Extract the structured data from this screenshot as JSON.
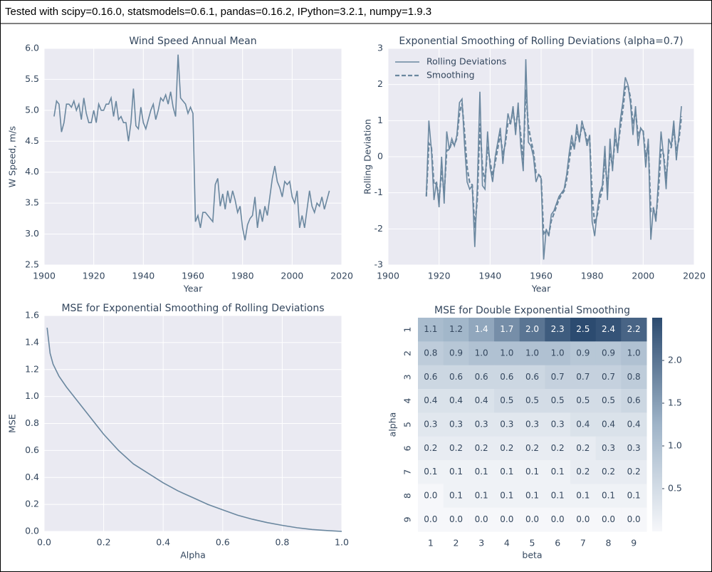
{
  "header": {
    "text": "Tested with scipy=0.16.0, statsmodels=0.6.1, pandas=0.16.2, IPython=3.2.1, numpy=1.9.3"
  },
  "chart_data": [
    {
      "type": "line",
      "title": "Wind Speed Annual Mean",
      "xlabel": "Year",
      "ylabel": "W Speed, m/s",
      "color": "#6a879f",
      "grid": true,
      "x": [
        1904,
        1905,
        1906,
        1907,
        1908,
        1909,
        1910,
        1911,
        1912,
        1913,
        1914,
        1915,
        1916,
        1917,
        1918,
        1919,
        1920,
        1921,
        1922,
        1923,
        1924,
        1925,
        1926,
        1927,
        1928,
        1929,
        1930,
        1931,
        1932,
        1933,
        1934,
        1935,
        1936,
        1937,
        1938,
        1939,
        1940,
        1941,
        1942,
        1943,
        1944,
        1945,
        1946,
        1947,
        1948,
        1949,
        1950,
        1951,
        1952,
        1953,
        1954,
        1955,
        1956,
        1957,
        1958,
        1959,
        1960,
        1961,
        1962,
        1963,
        1964,
        1965,
        1966,
        1967,
        1968,
        1969,
        1970,
        1971,
        1972,
        1973,
        1974,
        1975,
        1976,
        1977,
        1978,
        1979,
        1980,
        1981,
        1982,
        1983,
        1984,
        1985,
        1986,
        1987,
        1988,
        1989,
        1990,
        1991,
        1992,
        1993,
        1994,
        1995,
        1996,
        1997,
        1998,
        1999,
        2000,
        2001,
        2002,
        2003,
        2004,
        2005,
        2006,
        2007,
        2008,
        2009,
        2010,
        2011,
        2012,
        2013,
        2014,
        2015
      ],
      "values": [
        4.9,
        5.15,
        5.1,
        4.65,
        4.8,
        5.1,
        5.1,
        5.05,
        5.15,
        5.0,
        5.1,
        4.85,
        5.2,
        4.95,
        4.8,
        4.8,
        5.0,
        4.8,
        5.1,
        5.0,
        5.0,
        5.1,
        5.1,
        5.2,
        4.9,
        5.15,
        4.85,
        4.9,
        4.8,
        4.8,
        4.5,
        4.8,
        5.35,
        4.75,
        4.7,
        5.05,
        4.8,
        4.7,
        4.85,
        5.0,
        5.1,
        4.85,
        5.0,
        5.2,
        5.15,
        5.25,
        5.1,
        5.3,
        5.05,
        4.9,
        5.9,
        5.2,
        5.15,
        5.1,
        4.95,
        5.05,
        4.95,
        3.2,
        3.3,
        3.1,
        3.35,
        3.35,
        3.3,
        3.25,
        3.2,
        3.8,
        3.9,
        3.45,
        3.65,
        3.4,
        3.7,
        3.5,
        3.7,
        3.55,
        3.35,
        3.45,
        3.1,
        2.9,
        3.15,
        3.25,
        3.3,
        3.6,
        3.1,
        3.4,
        3.2,
        3.45,
        3.3,
        3.6,
        3.9,
        4.1,
        3.85,
        3.75,
        3.6,
        3.85,
        3.8,
        3.85,
        3.6,
        3.5,
        3.7,
        3.1,
        3.3,
        3.1,
        3.4,
        3.7,
        3.45,
        3.35,
        3.5,
        3.45,
        3.6,
        3.4,
        3.55,
        3.7
      ],
      "xlim": [
        1900,
        2020
      ],
      "xticks": [
        1900,
        1920,
        1940,
        1960,
        1980,
        2000,
        2020
      ],
      "ylim": [
        2.5,
        6.0
      ],
      "yticks": [
        2.5,
        {
          "value": 3,
          "label": "3.0"
        },
        3.5,
        {
          "value": 4,
          "label": "4.0"
        },
        4.5,
        {
          "value": 5,
          "label": "5.0"
        },
        5.5,
        {
          "value": 6,
          "label": "6.0"
        }
      ]
    },
    {
      "type": "line",
      "title": "Exponential Smoothing of Rolling Deviations (alpha=0.7)",
      "xlabel": "Year",
      "ylabel": "Rolling Deviation",
      "grid": true,
      "legend": "upper left",
      "x": [
        1915,
        1916,
        1917,
        1918,
        1919,
        1920,
        1921,
        1922,
        1923,
        1924,
        1925,
        1926,
        1927,
        1928,
        1929,
        1930,
        1931,
        1932,
        1933,
        1934,
        1935,
        1936,
        1937,
        1938,
        1939,
        1940,
        1941,
        1942,
        1943,
        1944,
        1945,
        1946,
        1947,
        1948,
        1949,
        1950,
        1951,
        1952,
        1953,
        1954,
        1955,
        1956,
        1957,
        1958,
        1959,
        1960,
        1961,
        1962,
        1963,
        1964,
        1965,
        1966,
        1967,
        1968,
        1969,
        1970,
        1971,
        1972,
        1973,
        1974,
        1975,
        1976,
        1977,
        1978,
        1979,
        1980,
        1981,
        1982,
        1983,
        1984,
        1985,
        1986,
        1987,
        1988,
        1989,
        1990,
        1991,
        1992,
        1993,
        1994,
        1995,
        1996,
        1997,
        1998,
        1999,
        2000,
        2001,
        2002,
        2003,
        2004,
        2005,
        2006,
        2007,
        2008,
        2009,
        2010,
        2011,
        2012,
        2013,
        2014,
        2015
      ],
      "series": [
        {
          "name": "Rolling Deviations",
          "color": "#6a879f",
          "linestyle": "solid",
          "values": [
            -1.1,
            1.0,
            0.2,
            -1.2,
            -0.7,
            -1.4,
            0.0,
            -1.3,
            0.7,
            0.2,
            0.5,
            0.3,
            0.6,
            1.5,
            1.6,
            0.3,
            -0.7,
            -0.9,
            -0.8,
            -2.5,
            -0.8,
            1.8,
            -0.8,
            -0.9,
            0.7,
            -0.3,
            -0.7,
            0.0,
            0.4,
            0.8,
            -0.2,
            0.5,
            1.2,
            0.9,
            1.4,
            0.6,
            1.5,
            0.3,
            -0.4,
            2.7,
            0.4,
            0.3,
            0.0,
            -0.7,
            -0.5,
            -0.6,
            -2.85,
            -2.0,
            -2.2,
            -1.6,
            -1.5,
            -1.3,
            -1.1,
            -1.0,
            -0.9,
            -0.5,
            0.1,
            0.6,
            0.2,
            0.9,
            0.4,
            1.0,
            0.7,
            0.3,
            0.6,
            -1.8,
            -2.2,
            -1.5,
            -1.0,
            -0.8,
            0.3,
            -1.2,
            0.5,
            -0.4,
            0.8,
            0.1,
            1.0,
            1.5,
            2.2,
            2.0,
            1.5,
            0.6,
            1.4,
            0.3,
            0.8,
            0.7,
            -0.3,
            0.5,
            -2.3,
            -1.4,
            -1.8,
            -0.6,
            0.7,
            0.0,
            -0.9,
            0.5,
            0.3,
            1.0,
            -0.1,
            0.6,
            1.4
          ]
        },
        {
          "name": "Smoothing",
          "color": "#6a879f",
          "linestyle": "dashed",
          "values": [
            -1.1,
            0.37,
            0.25,
            -0.77,
            -0.72,
            -1.2,
            -0.36,
            -1.02,
            0.18,
            0.19,
            0.41,
            0.33,
            0.52,
            1.21,
            1.48,
            0.65,
            -0.3,
            -0.72,
            -0.78,
            -1.98,
            -1.15,
            0.92,
            -0.28,
            -0.71,
            0.28,
            -0.13,
            -0.53,
            -0.16,
            0.23,
            0.63,
            0.05,
            0.37,
            0.95,
            0.92,
            1.26,
            0.8,
            1.29,
            0.6,
            -0.1,
            1.86,
            0.84,
            0.46,
            0.14,
            -0.45,
            -0.49,
            -0.57,
            -2.17,
            -2.05,
            -2.16,
            -1.77,
            -1.58,
            -1.38,
            -1.18,
            -1.05,
            -0.95,
            -0.64,
            -0.12,
            0.38,
            0.25,
            0.71,
            0.49,
            0.85,
            0.75,
            0.44,
            0.55,
            -1.1,
            -1.87,
            -1.61,
            -1.18,
            -0.91,
            -0.06,
            -0.86,
            0.09,
            -0.25,
            0.49,
            0.22,
            0.77,
            1.28,
            1.92,
            1.98,
            1.64,
            0.91,
            1.25,
            0.59,
            0.74,
            0.71,
            0.0,
            0.35,
            -1.51,
            -1.43,
            -1.69,
            -0.93,
            0.21,
            0.06,
            -0.61,
            0.17,
            0.26,
            0.78,
            0.16,
            0.47,
            1.12
          ]
        }
      ],
      "xlim": [
        1900,
        2020
      ],
      "xticks": [
        1900,
        1920,
        1940,
        1960,
        1980,
        2000,
        2020
      ],
      "ylim": [
        -3,
        3
      ],
      "yticks": [
        -3,
        -2,
        -1,
        0,
        1,
        2,
        3
      ]
    },
    {
      "type": "line",
      "title": "MSE for Exponential Smoothing of Rolling Deviations",
      "xlabel": "Alpha",
      "ylabel": "MSE",
      "color": "#6a879f",
      "grid": true,
      "x": [
        0.01,
        0.02,
        0.03,
        0.05,
        0.075,
        0.1,
        0.15,
        0.2,
        0.25,
        0.3,
        0.35,
        0.4,
        0.45,
        0.5,
        0.55,
        0.6,
        0.65,
        0.7,
        0.75,
        0.8,
        0.85,
        0.9,
        0.95,
        1.0
      ],
      "values": [
        1.51,
        1.32,
        1.24,
        1.15,
        1.07,
        1.0,
        0.86,
        0.72,
        0.6,
        0.5,
        0.43,
        0.36,
        0.3,
        0.25,
        0.2,
        0.16,
        0.12,
        0.09,
        0.065,
        0.045,
        0.027,
        0.014,
        0.006,
        0.0
      ],
      "xlim": [
        0,
        1
      ],
      "xticks": [
        {
          "value": 0,
          "label": "0.0"
        },
        0.2,
        0.4,
        0.6,
        0.8,
        {
          "value": 1,
          "label": "1.0"
        }
      ],
      "ylim": [
        0,
        1.6
      ],
      "yticks": [
        {
          "value": 0,
          "label": "0.0"
        },
        0.2,
        0.4,
        0.6,
        0.8,
        {
          "value": 1,
          "label": "1.0"
        },
        1.2,
        1.4,
        1.6
      ]
    },
    {
      "type": "heatmap",
      "title": "MSE for Double Exponential Smoothing",
      "xlabel": "beta",
      "ylabel": "alpha",
      "x_categories": [
        1,
        2,
        3,
        4,
        5,
        6,
        7,
        8,
        9
      ],
      "y_categories": [
        1,
        2,
        3,
        4,
        5,
        6,
        7,
        8,
        9
      ],
      "values": [
        [
          1.1,
          1.2,
          1.4,
          1.7,
          2.0,
          2.3,
          2.5,
          2.4,
          2.2
        ],
        [
          0.8,
          0.9,
          1.0,
          1.0,
          1.0,
          1.0,
          0.9,
          0.9,
          1.0
        ],
        [
          0.6,
          0.6,
          0.6,
          0.6,
          0.6,
          0.7,
          0.7,
          0.7,
          0.8
        ],
        [
          0.4,
          0.4,
          0.4,
          0.5,
          0.5,
          0.5,
          0.5,
          0.5,
          0.6
        ],
        [
          0.3,
          0.3,
          0.3,
          0.3,
          0.3,
          0.3,
          0.4,
          0.4,
          0.4
        ],
        [
          0.2,
          0.2,
          0.2,
          0.2,
          0.2,
          0.2,
          0.2,
          0.3,
          0.3
        ],
        [
          0.1,
          0.1,
          0.1,
          0.1,
          0.1,
          0.1,
          0.2,
          0.2,
          0.2
        ],
        [
          0.0,
          0.1,
          0.1,
          0.1,
          0.1,
          0.1,
          0.1,
          0.1,
          0.1
        ],
        [
          0.0,
          0.0,
          0.0,
          0.0,
          0.0,
          0.0,
          0.0,
          0.0,
          0.0
        ]
      ],
      "value_labels": [
        [
          "1.1",
          "1.2",
          "1.4",
          "1.7",
          "2.0",
          "2.3",
          "2.5",
          "2.4",
          "2.2"
        ],
        [
          "0.8",
          "0.9",
          "1.0",
          "1.0",
          "1.0",
          "1.0",
          "0.9",
          "0.9",
          "1.0"
        ],
        [
          "0.6",
          "0.6",
          "0.6",
          "0.6",
          "0.6",
          "0.7",
          "0.7",
          "0.7",
          "0.8"
        ],
        [
          "0.4",
          "0.4",
          "0.4",
          "0.5",
          "0.5",
          "0.5",
          "0.5",
          "0.5",
          "0.6"
        ],
        [
          "0.3",
          "0.3",
          "0.3",
          "0.3",
          "0.3",
          "0.3",
          "0.4",
          "0.4",
          "0.4"
        ],
        [
          "0.2",
          "0.2",
          "0.2",
          "0.2",
          "0.2",
          "0.2",
          "0.2",
          "0.3",
          "0.3"
        ],
        [
          "0.1",
          "0.1",
          "0.1",
          "0.1",
          "0.1",
          "0.1",
          "0.2",
          "0.2",
          "0.2"
        ],
        [
          "0.0",
          "0.1",
          "0.1",
          "0.1",
          "0.1",
          "0.1",
          "0.1",
          "0.1",
          "0.1"
        ],
        [
          "0.0",
          "0.0",
          "0.0",
          "0.0",
          "0.0",
          "0.0",
          "0.0",
          "0.0",
          "0.0"
        ]
      ],
      "cmap": [
        "#f6f7fa",
        "#9fb4c8",
        "#2c4b70"
      ],
      "clim": [
        0,
        2.5
      ],
      "colorbar_ticks": [
        0.5,
        {
          "value": 1,
          "label": "1.0"
        },
        1.5,
        {
          "value": 2,
          "label": "2.0"
        }
      ]
    }
  ]
}
